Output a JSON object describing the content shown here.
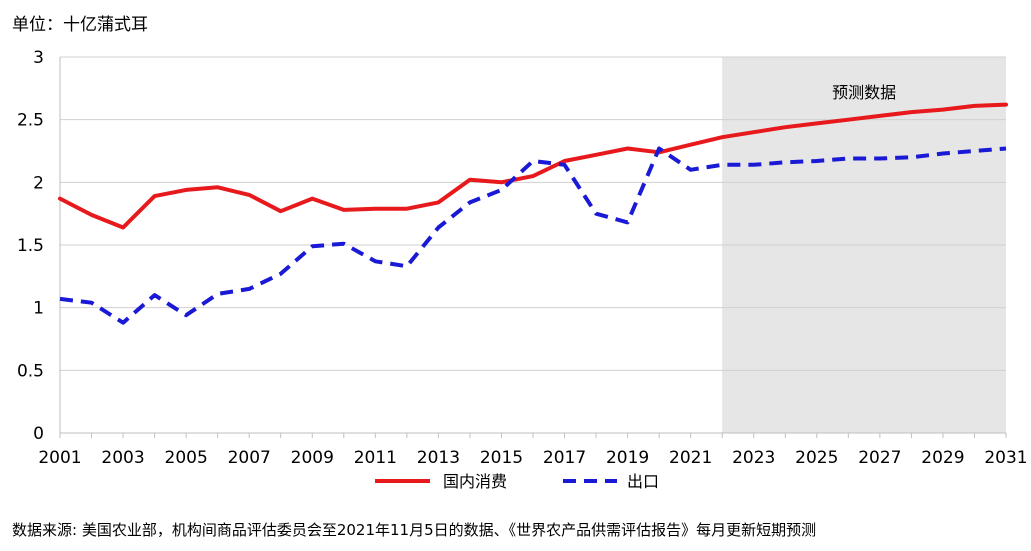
{
  "unit_label": "单位：十亿蒲式耳",
  "source_note": "数据来源: 美国农业部，机构间商品评估委员会至2021年11月5日的数据、《世界农产品供需评估报告》每月更新短期预测",
  "chart_data": {
    "type": "line",
    "x": [
      2001,
      2002,
      2003,
      2004,
      2005,
      2006,
      2007,
      2008,
      2009,
      2010,
      2011,
      2012,
      2013,
      2014,
      2015,
      2016,
      2017,
      2018,
      2019,
      2020,
      2021,
      2022,
      2023,
      2024,
      2025,
      2026,
      2027,
      2028,
      2029,
      2030,
      2031
    ],
    "x_tick_labels": [
      "2001",
      "2003",
      "2005",
      "2007",
      "2009",
      "2011",
      "2013",
      "2015",
      "2017",
      "2019",
      "2021",
      "2023",
      "2025",
      "2027",
      "2029",
      "2031"
    ],
    "y_tick_labels": [
      "0",
      "0.5",
      "1",
      "1.5",
      "2",
      "2.5",
      "3"
    ],
    "ylim": [
      0,
      3
    ],
    "xlim": [
      2001,
      2031
    ],
    "forecast_region": {
      "from": 2022,
      "to": 2031,
      "label": "预测数据",
      "color": "#e6e6e6"
    },
    "grid": "horizontal",
    "legend_position": "bottom",
    "series": [
      {
        "name": "国内消费",
        "color": "#e8191c",
        "style": "solid",
        "values": [
          1.87,
          1.74,
          1.64,
          1.89,
          1.94,
          1.96,
          1.9,
          1.77,
          1.87,
          1.78,
          1.79,
          1.79,
          1.84,
          2.02,
          2.0,
          2.05,
          2.17,
          2.22,
          2.27,
          2.24,
          2.3,
          2.36,
          2.4,
          2.44,
          2.47,
          2.5,
          2.53,
          2.56,
          2.58,
          2.61,
          2.62
        ]
      },
      {
        "name": "出口",
        "color": "#1a1ad6",
        "style": "dashed",
        "values": [
          1.07,
          1.04,
          0.88,
          1.1,
          0.94,
          1.11,
          1.15,
          1.27,
          1.49,
          1.51,
          1.37,
          1.33,
          1.64,
          1.84,
          1.94,
          2.17,
          2.14,
          1.75,
          1.68,
          2.27,
          2.1,
          2.14,
          2.14,
          2.16,
          2.17,
          2.19,
          2.19,
          2.2,
          2.23,
          2.25,
          2.27
        ]
      }
    ]
  }
}
